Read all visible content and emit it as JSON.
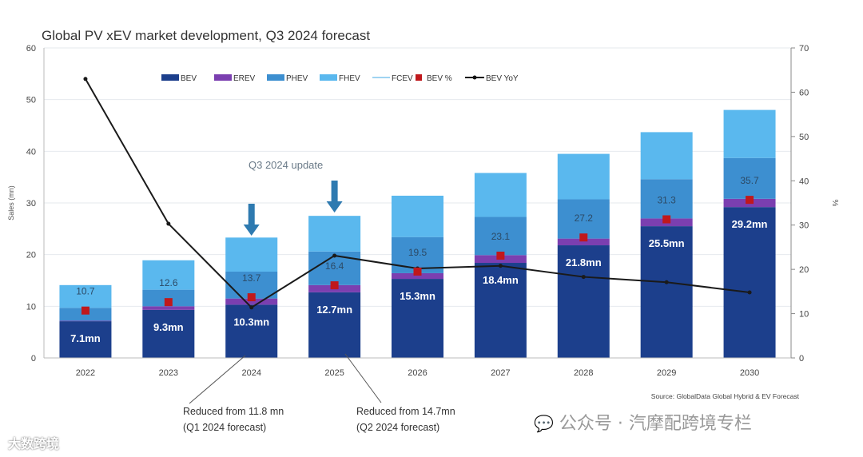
{
  "chart_data": {
    "type": "bar",
    "stacked": true,
    "title": "Global PV xEV market development, Q3 2024 forecast",
    "ylabel": "Sales (mn)",
    "y2label": "%",
    "ylim": [
      0,
      60
    ],
    "y2lim": [
      0,
      70
    ],
    "yticks": [
      "0",
      "10",
      "20",
      "30",
      "40",
      "50",
      "60"
    ],
    "y2ticks": [
      "0",
      "10",
      "20",
      "30",
      "40",
      "50",
      "60",
      "70"
    ],
    "grid": true,
    "legend_position": "top",
    "categories": [
      "2022",
      "2023",
      "2024",
      "2025",
      "2026",
      "2027",
      "2028",
      "2029",
      "2030"
    ],
    "series": [
      {
        "name": "BEV",
        "color": "#1c3f8c",
        "values": [
          7.1,
          9.3,
          10.3,
          12.7,
          15.3,
          18.4,
          21.8,
          25.5,
          29.2
        ]
      },
      {
        "name": "EREV",
        "color": "#7b3fb0",
        "values": [
          0.1,
          0.7,
          1.2,
          1.4,
          1.1,
          1.5,
          1.3,
          1.5,
          1.6
        ]
      },
      {
        "name": "PHEV",
        "color": "#3d8fd0",
        "values": [
          2.5,
          3.2,
          5.2,
          6.5,
          7.0,
          7.4,
          7.6,
          7.6,
          7.9
        ]
      },
      {
        "name": "FHEV",
        "color": "#5ab8ee",
        "values": [
          4.4,
          5.7,
          6.6,
          6.9,
          8.0,
          8.5,
          8.8,
          9.1,
          9.3
        ]
      },
      {
        "name": "FCEV",
        "color": "#9fd3f2",
        "values": [
          0,
          0,
          0,
          0,
          0,
          0,
          0,
          0,
          0
        ]
      }
    ],
    "bev_labels": [
      "7.1mn",
      "9.3mn",
      "10.3mn",
      "12.7mn",
      "15.3mn",
      "18.4mn",
      "21.8mn",
      "25.5mn",
      "29.2mn"
    ],
    "bev_share": {
      "name": "BEV %",
      "color": "#c0181c",
      "axis": "right",
      "values": [
        10.7,
        12.6,
        13.7,
        16.4,
        19.5,
        23.1,
        27.2,
        31.3,
        35.7
      ],
      "labels": [
        "10.7",
        "12.6",
        "13.7",
        "16.4",
        "19.5",
        "23.1",
        "27.2",
        "31.3",
        "35.7"
      ]
    },
    "bev_yoy": {
      "name": "BEV YoY",
      "color": "#1a1a1a",
      "axis": "right",
      "values": [
        63,
        30.3,
        11.4,
        23.1,
        20.2,
        20.8,
        18.3,
        17.1,
        14.8
      ]
    },
    "annotations": {
      "update": "Q3 2024 update",
      "note_2024": [
        "Reduced from 11.8 mn",
        "(Q1 2024 forecast)"
      ],
      "note_2025": [
        "Reduced from 14.7mn",
        "(Q2 2024 forecast)"
      ],
      "source": "Source: GlobalData Global Hybrid & EV Forecast"
    }
  },
  "watermarks": {
    "wechat": "公众号 · 汽摩配跨境专栏",
    "corner": "大数跨境"
  }
}
